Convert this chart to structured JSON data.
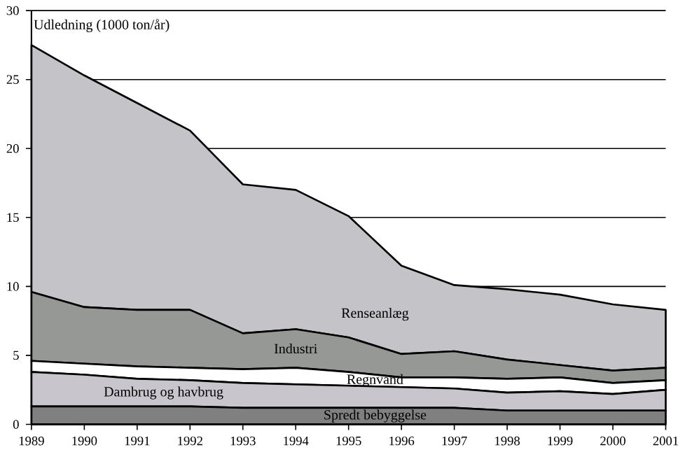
{
  "chart_data": {
    "type": "area",
    "stacked": true,
    "ylabel": "Udledning (1000 ton/år)",
    "x": [
      1989,
      1990,
      1991,
      1992,
      1993,
      1994,
      1995,
      1996,
      1997,
      1998,
      1999,
      2000,
      2001
    ],
    "xlim": [
      1989,
      2001
    ],
    "xticks": [
      1989,
      1990,
      1991,
      1992,
      1993,
      1994,
      1995,
      1996,
      1997,
      1998,
      1999,
      2000,
      2001
    ],
    "ylim": [
      0,
      30
    ],
    "yticks": [
      0,
      5,
      10,
      15,
      20,
      25,
      30
    ],
    "grid": "y",
    "series": [
      {
        "name": "Spredt bebyggelse",
        "color": "#808080",
        "values": [
          1.3,
          1.3,
          1.3,
          1.3,
          1.2,
          1.2,
          1.2,
          1.2,
          1.2,
          1.0,
          1.0,
          1.0,
          1.0
        ]
      },
      {
        "name": "Dambrug og havbrug",
        "color": "#c8c6cc",
        "values": [
          2.5,
          2.3,
          2.0,
          1.9,
          1.8,
          1.7,
          1.6,
          1.5,
          1.4,
          1.3,
          1.4,
          1.2,
          1.5
        ]
      },
      {
        "name": "Regnvand",
        "color": "#ffffff",
        "values": [
          0.8,
          0.8,
          0.9,
          0.9,
          1.0,
          1.2,
          1.0,
          0.7,
          0.8,
          1.0,
          1.0,
          0.8,
          0.7
        ]
      },
      {
        "name": "Industri",
        "color": "#969896",
        "values": [
          5.0,
          4.1,
          4.1,
          4.2,
          2.6,
          2.8,
          2.5,
          1.7,
          1.9,
          1.4,
          0.9,
          0.9,
          0.9
        ]
      },
      {
        "name": "Renseanlæg",
        "color": "#c4c3c8",
        "values": [
          17.9,
          16.8,
          15.0,
          13.0,
          10.8,
          10.1,
          8.8,
          6.4,
          4.8,
          5.1,
          5.1,
          4.8,
          4.2
        ]
      }
    ]
  }
}
